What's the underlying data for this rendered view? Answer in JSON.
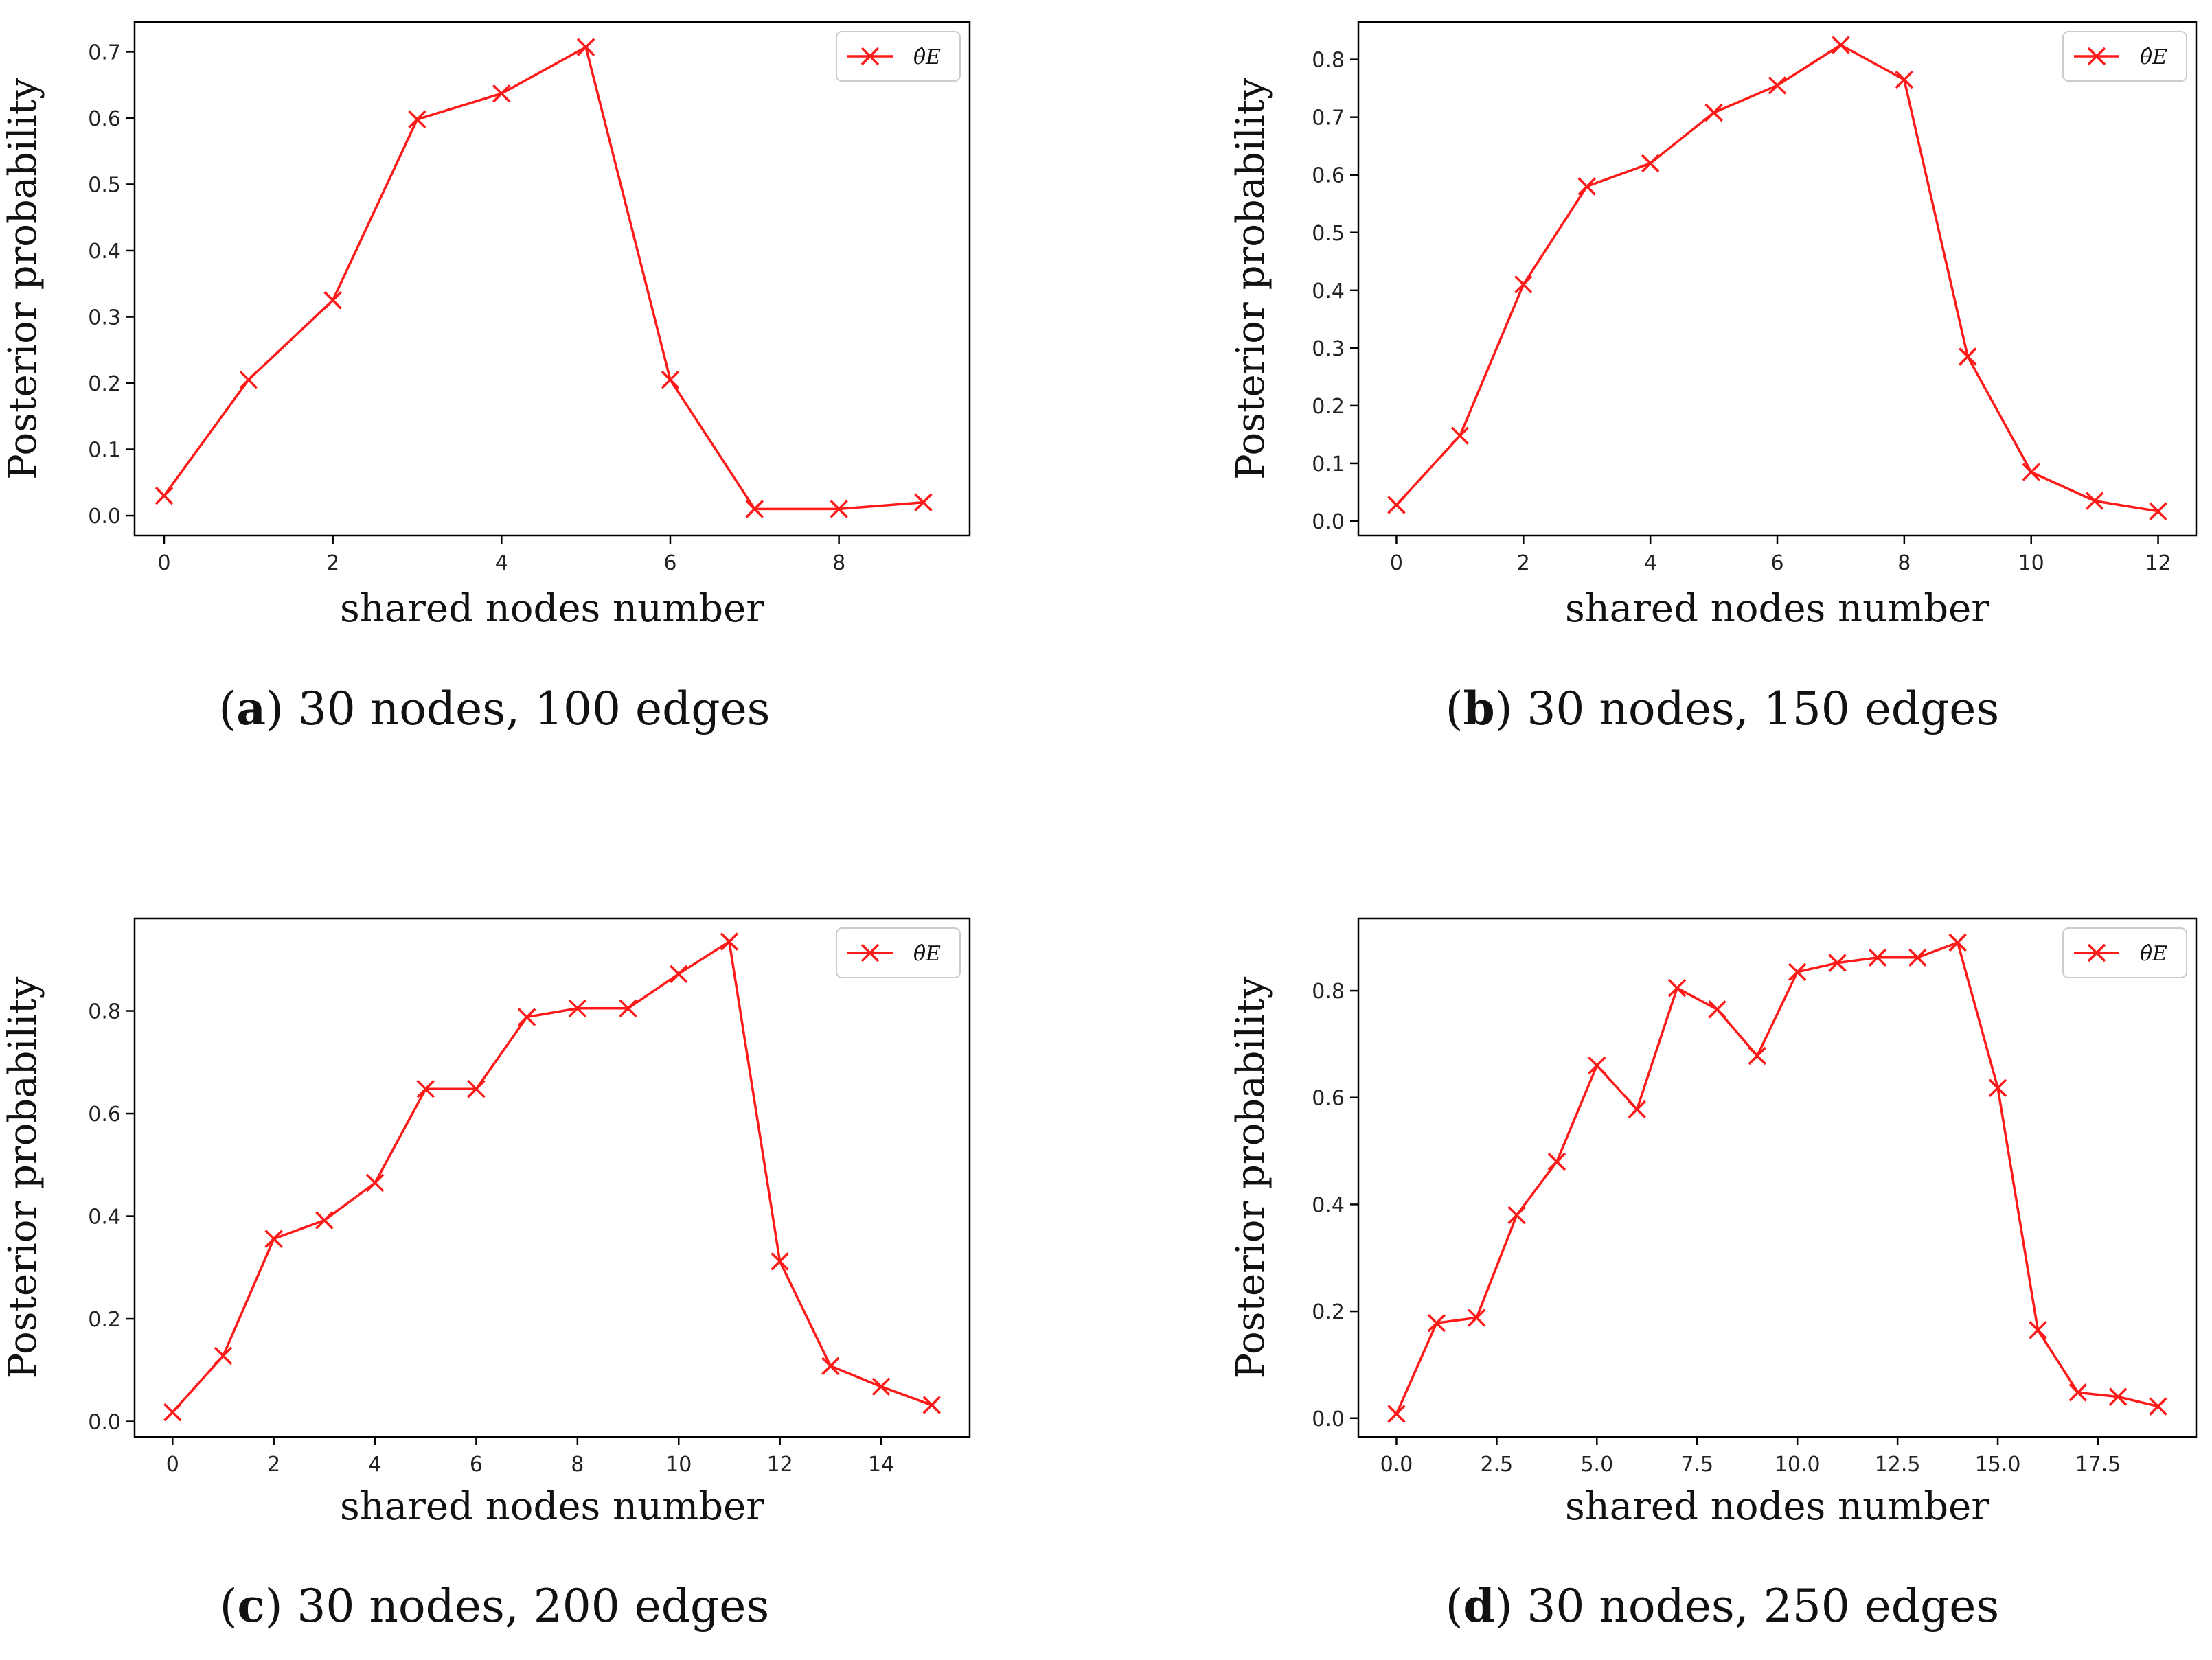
{
  "colors": {
    "series": "#ff1a1a",
    "axes": "#000000",
    "legend_border": "#cccccc"
  },
  "chart_data": [
    {
      "type": "line",
      "letter": "a",
      "caption_text": " 30 nodes, 100 edges",
      "xlabel": "shared nodes number",
      "ylabel": "Posterior probability",
      "legend": "θ̂E",
      "legend_location": "top-right",
      "x": [
        0,
        1,
        2,
        3,
        4,
        5,
        6,
        7,
        8,
        9
      ],
      "values": [
        0.03,
        0.205,
        0.325,
        0.598,
        0.637,
        0.707,
        0.205,
        0.01,
        0.01,
        0.02
      ],
      "xlim": [
        -0.35,
        9.55
      ],
      "ylim": [
        -0.03,
        0.745
      ],
      "xticks": [
        0,
        2,
        4,
        6,
        8
      ],
      "xtick_labels": [
        "0",
        "2",
        "4",
        "6",
        "8"
      ],
      "yticks": [
        0.0,
        0.1,
        0.2,
        0.3,
        0.4,
        0.5,
        0.6,
        0.7
      ],
      "ytick_labels": [
        "0.0",
        "0.1",
        "0.2",
        "0.3",
        "0.4",
        "0.5",
        "0.6",
        "0.7"
      ]
    },
    {
      "type": "line",
      "letter": "b",
      "caption_text": " 30 nodes, 150 edges",
      "xlabel": "shared nodes number",
      "ylabel": "Posterior probability",
      "legend": "θ̂E",
      "legend_location": "top-right",
      "x": [
        0,
        1,
        2,
        3,
        4,
        5,
        6,
        7,
        8,
        9,
        10,
        11,
        12
      ],
      "values": [
        0.028,
        0.148,
        0.41,
        0.58,
        0.62,
        0.708,
        0.755,
        0.825,
        0.765,
        0.285,
        0.085,
        0.035,
        0.017
      ],
      "xlim": [
        -0.6,
        12.6
      ],
      "ylim": [
        -0.025,
        0.865
      ],
      "xticks": [
        0,
        2,
        4,
        6,
        8,
        10,
        12
      ],
      "xtick_labels": [
        "0",
        "2",
        "4",
        "6",
        "8",
        "10",
        "12"
      ],
      "yticks": [
        0.0,
        0.1,
        0.2,
        0.3,
        0.4,
        0.5,
        0.6,
        0.7,
        0.8
      ],
      "ytick_labels": [
        "0.0",
        "0.1",
        "0.2",
        "0.3",
        "0.4",
        "0.5",
        "0.6",
        "0.7",
        "0.8"
      ]
    },
    {
      "type": "line",
      "letter": "c",
      "caption_text": " 30 nodes, 200 edges",
      "xlabel": "shared nodes number",
      "ylabel": "Posterior probability",
      "legend": "θ̂E",
      "legend_location": "top-right",
      "x": [
        0,
        1,
        2,
        3,
        4,
        5,
        6,
        7,
        8,
        9,
        10,
        11,
        12,
        13,
        14,
        15
      ],
      "values": [
        0.018,
        0.128,
        0.356,
        0.392,
        0.465,
        0.648,
        0.648,
        0.788,
        0.805,
        0.805,
        0.872,
        0.935,
        0.312,
        0.108,
        0.068,
        0.032
      ],
      "xlim": [
        -0.75,
        15.75
      ],
      "ylim": [
        -0.03,
        0.98
      ],
      "xticks": [
        0,
        2,
        4,
        6,
        8,
        10,
        12,
        14
      ],
      "xtick_labels": [
        "0",
        "2",
        "4",
        "6",
        "8",
        "10",
        "12",
        "14"
      ],
      "yticks": [
        0.0,
        0.2,
        0.4,
        0.6,
        0.8
      ],
      "ytick_labels": [
        "0.0",
        "0.2",
        "0.4",
        "0.6",
        "0.8"
      ]
    },
    {
      "type": "line",
      "letter": "d",
      "caption_text": " 30 nodes, 250 edges",
      "xlabel": "shared nodes number",
      "ylabel": "Posterior probability",
      "legend": "θ̂E",
      "legend_location": "top-right",
      "x": [
        0,
        1,
        2,
        3,
        4,
        5,
        6,
        7,
        8,
        9,
        10,
        11,
        12,
        13,
        14,
        15,
        16,
        17,
        18,
        19
      ],
      "values": [
        0.008,
        0.178,
        0.188,
        0.38,
        0.48,
        0.66,
        0.578,
        0.805,
        0.765,
        0.678,
        0.835,
        0.852,
        0.862,
        0.862,
        0.89,
        0.618,
        0.165,
        0.048,
        0.04,
        0.022
      ],
      "xlim": [
        -0.95,
        19.95
      ],
      "ylim": [
        -0.035,
        0.935
      ],
      "xticks": [
        0.0,
        2.5,
        5.0,
        7.5,
        10.0,
        12.5,
        15.0,
        17.5
      ],
      "xtick_labels": [
        "0.0",
        "2.5",
        "5.0",
        "7.5",
        "10.0",
        "12.5",
        "15.0",
        "17.5"
      ],
      "yticks": [
        0.0,
        0.2,
        0.4,
        0.6,
        0.8
      ],
      "ytick_labels": [
        "0.0",
        "0.2",
        "0.4",
        "0.6",
        "0.8"
      ]
    }
  ]
}
